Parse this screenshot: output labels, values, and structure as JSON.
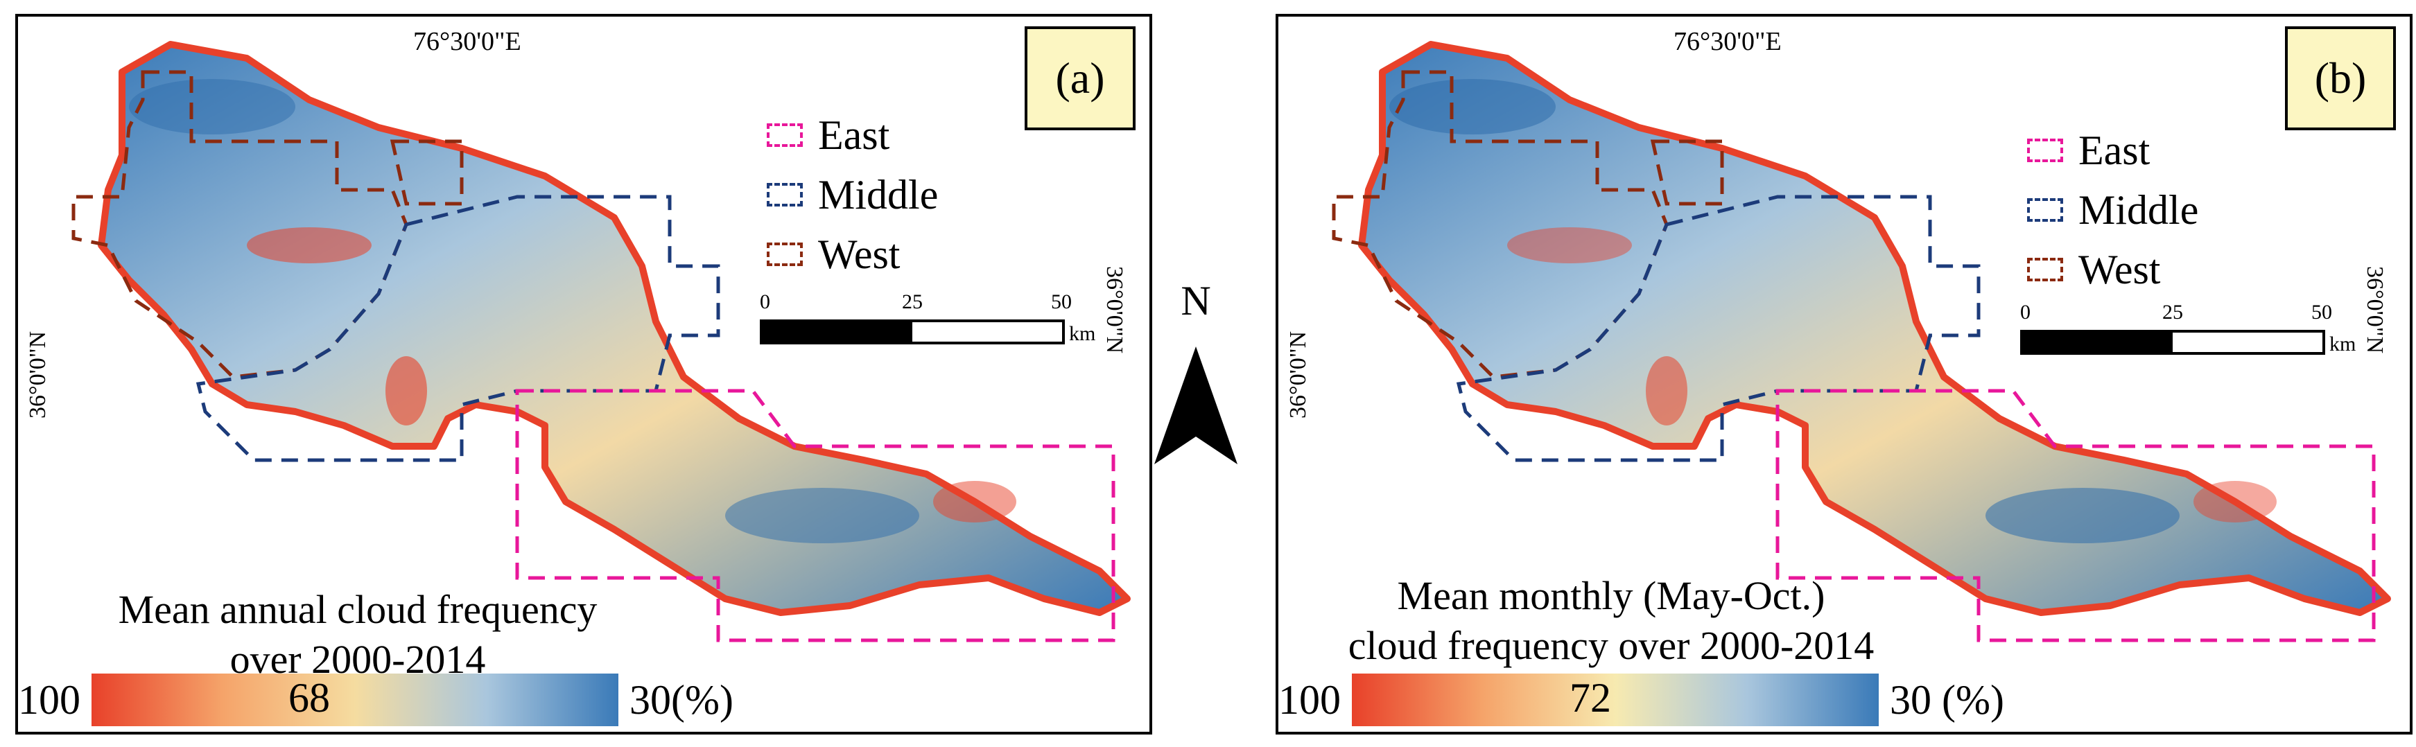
{
  "colors": {
    "warm": "#e8412a",
    "mid": "#f5dca0",
    "cool": "#3a7ab8",
    "east": "#e8179a",
    "middle": "#1c3b7a",
    "west": "#8b2a10",
    "label_bg": "#fcf6c2"
  },
  "legend": {
    "east": "East",
    "middle": "Middle",
    "west": "West"
  },
  "scale_bar": {
    "ticks": [
      "0",
      "25",
      "50"
    ],
    "unit": "km"
  },
  "north_arrow": {
    "letter": "N"
  },
  "panels": [
    {
      "label": "(a)",
      "longitude": "76°30'0\"E",
      "latitude_left": "36°0'0\"N",
      "latitude_right": "36°0'0\"N",
      "caption_line1": "Mean annual cloud frequency",
      "caption_line2": "over 2000-2014",
      "colorbar": {
        "min_label": "100",
        "mid_label": "68",
        "max_label": "30(%)"
      }
    },
    {
      "label": "(b)",
      "longitude": "76°30'0\"E",
      "latitude_left": "36°0'0\"N",
      "latitude_right": "36°0'0\"N",
      "caption_line1": "Mean monthly (May-Oct.)",
      "caption_line2": "cloud frequency over 2000-2014",
      "colorbar": {
        "min_label": "100",
        "mid_label": "72",
        "max_label": "30 (%)"
      }
    }
  ]
}
